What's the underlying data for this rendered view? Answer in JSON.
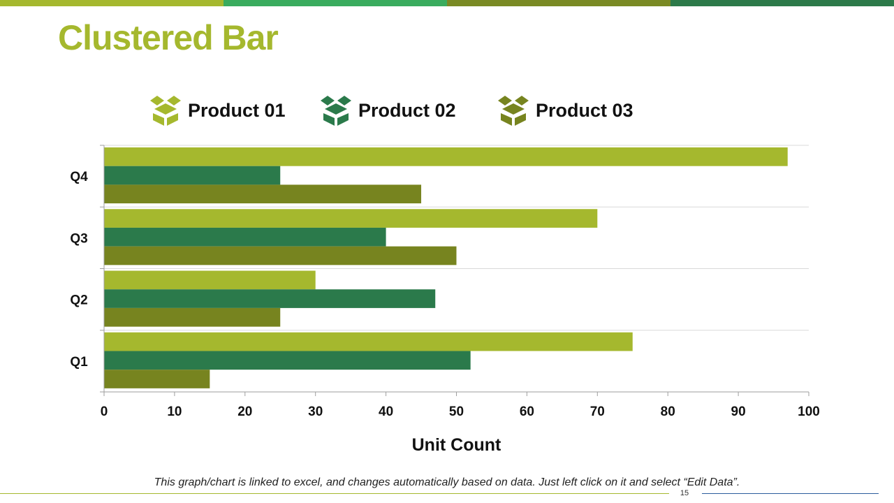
{
  "colors": {
    "top_bar": [
      "#a5b82e",
      "#3aac5e",
      "#7a8a24",
      "#2d7a4a"
    ],
    "title": "#a5b82e",
    "series": [
      "#a5b82e",
      "#2b7a4b",
      "#77841f"
    ],
    "footer_left_line": "#a5b82e",
    "footer_right_line": "#2b5c9c"
  },
  "slide": {
    "title": "Clustered Bar",
    "note": "This graph/chart is linked to excel, and changes automatically based on data. Just left click on it and select “Edit Data”.",
    "page_number": "15"
  },
  "legend": [
    {
      "label": "Product 01",
      "icon": "box-icon"
    },
    {
      "label": "Product 02",
      "icon": "box-icon"
    },
    {
      "label": "Product 03",
      "icon": "box-icon"
    }
  ],
  "chart_data": {
    "type": "bar",
    "orientation": "horizontal",
    "categories": [
      "Q1",
      "Q2",
      "Q3",
      "Q4"
    ],
    "series": [
      {
        "name": "Product 01",
        "values": [
          75,
          30,
          70,
          97
        ]
      },
      {
        "name": "Product 02",
        "values": [
          52,
          47,
          40,
          25
        ]
      },
      {
        "name": "Product 03",
        "values": [
          15,
          25,
          50,
          45
        ]
      }
    ],
    "xlabel": "Unit Count",
    "ylabel": "",
    "xlim": [
      0,
      100
    ],
    "xticks": [
      0,
      10,
      20,
      30,
      40,
      50,
      60,
      70,
      80,
      90,
      100
    ],
    "grid": true,
    "legend_position": "top"
  }
}
